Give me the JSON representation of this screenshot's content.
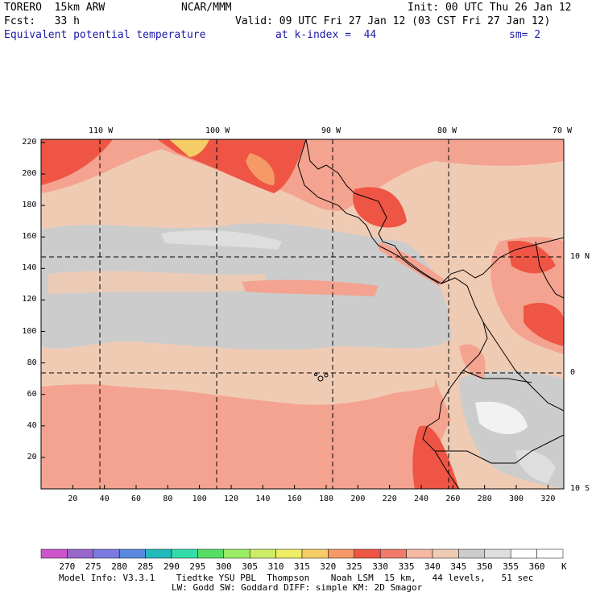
{
  "header": {
    "model": "TORERO  15km ARW",
    "org": "NCAR/MMM",
    "init": "Init: 00 UTC Thu 26 Jan 12",
    "fcst": "Fcst:   33 h",
    "valid": "Valid: 09 UTC Fri 27 Jan 12 (03 CST Fri 27 Jan 12)",
    "field": "Equivalent potential temperature",
    "level": "at k-index =  44",
    "smooth": "sm= 2"
  },
  "axes": {
    "x_ticks": [
      "20",
      "40",
      "60",
      "80",
      "100",
      "120",
      "140",
      "160",
      "180",
      "200",
      "220",
      "240",
      "260",
      "280",
      "300",
      "320"
    ],
    "y_ticks": [
      "220",
      "200",
      "180",
      "160",
      "140",
      "120",
      "100",
      "80",
      "60",
      "40",
      "20"
    ],
    "lon_labels": [
      "110 W",
      "100 W",
      "90 W",
      "80 W",
      "70 W"
    ],
    "lat_labels": [
      "10 N",
      "0",
      "10 S"
    ]
  },
  "colorbar": {
    "labels": [
      "270",
      "275",
      "280",
      "285",
      "290",
      "295",
      "300",
      "305",
      "310",
      "315",
      "320",
      "325",
      "330",
      "335",
      "340",
      "345",
      "350",
      "355",
      "360"
    ],
    "unit": "K",
    "colors": [
      "#cc55cc",
      "#9966cc",
      "#7a7ae0",
      "#5a8ae0",
      "#22bbbb",
      "#33ddaa",
      "#55dd66",
      "#99ee66",
      "#ccee66",
      "#eeee66",
      "#f5cc66",
      "#f59966",
      "#ee5544",
      "#f07a6a",
      "#f4b8a4",
      "#f0cbb4",
      "#cccccc",
      "#dedede",
      "#ffffff"
    ]
  },
  "footer": {
    "line1": "Model Info: V3.3.1    Tiedtke YSU PBL  Thompson    Noah LSM  15 km,   44 levels,   51 sec",
    "line2": "LW: Godd SW: Goddard DIFF: simple KM: 2D Smagor"
  },
  "map_colors": {
    "base": "#f0cbb4",
    "gray": "#cccccc",
    "light_gray": "#dedede",
    "white": "#f2f2f2",
    "salmon": "#f4a390",
    "red": "#ee5544",
    "orange": "#f59966",
    "yellow": "#f5cc66"
  }
}
